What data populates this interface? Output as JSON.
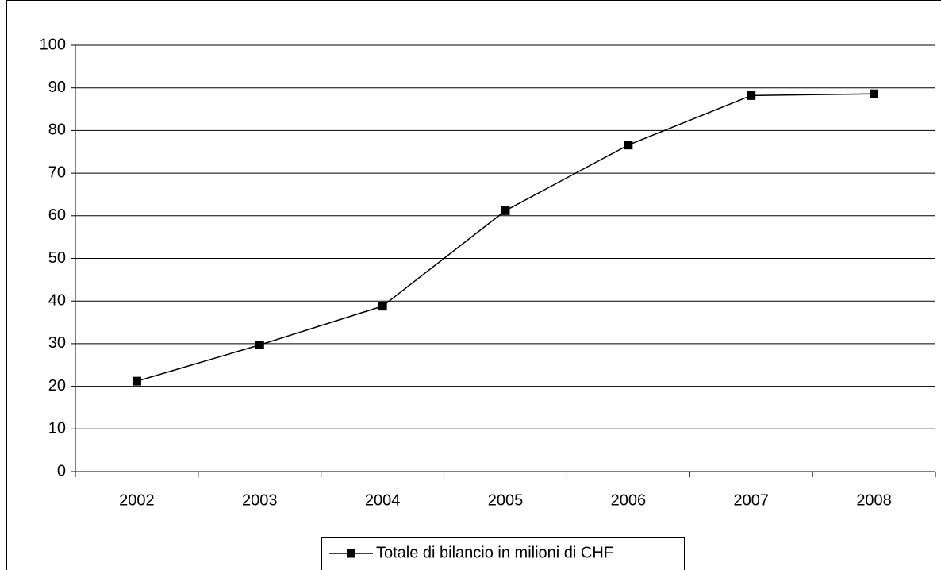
{
  "chart_data": {
    "type": "line",
    "categories": [
      "2002",
      "2003",
      "2004",
      "2005",
      "2006",
      "2007",
      "2008"
    ],
    "series": [
      {
        "name": "Totale di bilancio in milioni di CHF",
        "color": "#000000",
        "values": [
          21.2,
          29.7,
          38.8,
          61.2,
          76.6,
          88.2,
          88.6
        ]
      }
    ],
    "ylim": [
      0,
      100
    ],
    "yticks": [
      0,
      10,
      20,
      30,
      40,
      50,
      60,
      70,
      80,
      90,
      100
    ],
    "grid": true,
    "legend": "bottom"
  }
}
